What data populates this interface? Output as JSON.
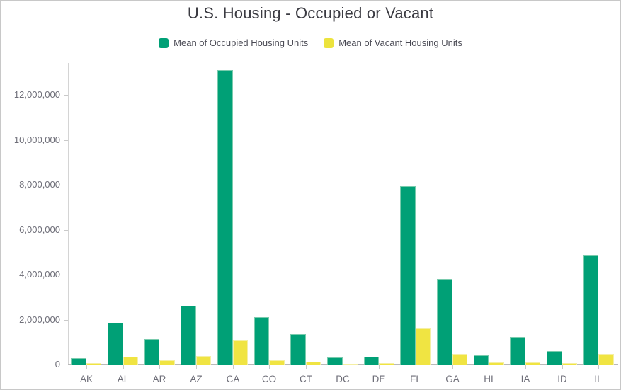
{
  "title": "U.S. Housing - Occupied or Vacant",
  "legend": {
    "items": [
      {
        "label": "Mean of Occupied Housing Units",
        "color": "#00a076"
      },
      {
        "label": "Mean of Vacant Housing Units",
        "color": "#ece33d"
      }
    ]
  },
  "chart_data": {
    "type": "bar",
    "title": "U.S. Housing - Occupied or Vacant",
    "categories": [
      "AK",
      "AL",
      "AR",
      "AZ",
      "CA",
      "CO",
      "CT",
      "DC",
      "DE",
      "FL",
      "GA",
      "HI",
      "IA",
      "ID",
      "IL"
    ],
    "series": [
      {
        "name": "Mean of Occupied Housing Units",
        "color": "#00a076",
        "border_color": "#79cbad",
        "values": [
          280000,
          1860000,
          1130000,
          2600000,
          13100000,
          2100000,
          1340000,
          310000,
          345000,
          7930000,
          3800000,
          420000,
          1240000,
          610000,
          4890000
        ]
      },
      {
        "name": "Mean of Vacant Housing Units",
        "color": "#f0e442",
        "border_color": "#f5efa3",
        "values": [
          65000,
          360000,
          180000,
          370000,
          1070000,
          180000,
          120000,
          30000,
          65000,
          1600000,
          465000,
          90000,
          110000,
          55000,
          460000
        ]
      }
    ],
    "xlabel": "",
    "ylabel": "",
    "ylim": [
      0,
      13300000
    ],
    "ytick_step": 2000000,
    "ytick_labels": [
      "0",
      "2,000,000",
      "4,000,000",
      "6,000,000",
      "8,000,000",
      "10,000,000",
      "12,000,000"
    ],
    "grid": false,
    "legend_position": "top"
  }
}
